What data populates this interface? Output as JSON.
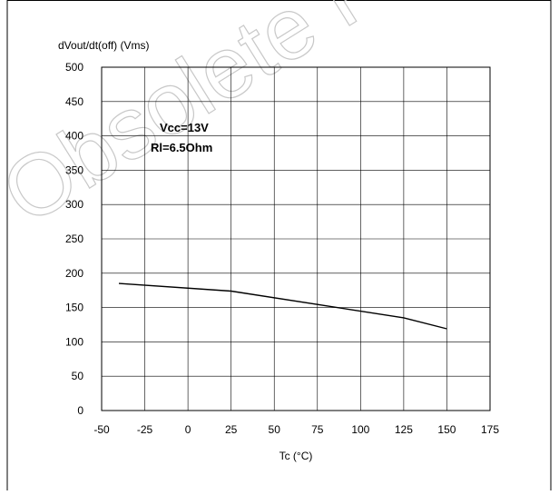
{
  "watermark": "Obsolete Pro",
  "chart_data": {
    "type": "line",
    "title": "",
    "ylabel": "dVout/dt(off) (Vms)",
    "xlabel": "Tc (°C)",
    "xlim": [
      -50,
      175
    ],
    "ylim": [
      0,
      500
    ],
    "x_ticks": [
      -50,
      -25,
      0,
      25,
      50,
      75,
      100,
      125,
      150,
      175
    ],
    "y_ticks": [
      0,
      50,
      100,
      150,
      200,
      250,
      300,
      350,
      400,
      450,
      500
    ],
    "grid": true,
    "annotations": [
      "Vcc=13V",
      "Rl=6.5Ohm"
    ],
    "series": [
      {
        "x": [
          -40,
          25,
          125,
          150
        ],
        "y": [
          185,
          174,
          135,
          119
        ]
      }
    ]
  }
}
